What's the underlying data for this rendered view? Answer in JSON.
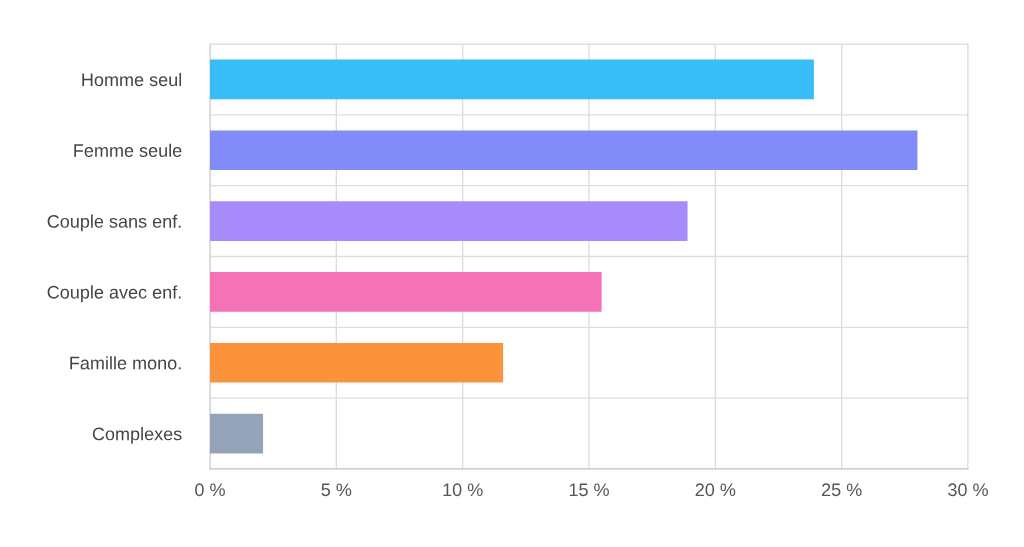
{
  "chart_data": {
    "type": "bar",
    "orientation": "horizontal",
    "categories": [
      "Homme seul",
      "Femme seule",
      "Couple sans enf.",
      "Couple avec enf.",
      "Famille mono.",
      "Complexes"
    ],
    "values": [
      23.9,
      28.0,
      18.9,
      15.5,
      11.6,
      2.1
    ],
    "colors": [
      "#38bdf8",
      "#818cf8",
      "#a78bfa",
      "#f472b6",
      "#fb923c",
      "#94a3b8"
    ],
    "xlim": [
      0,
      30
    ],
    "xticks": [
      {
        "value": 0,
        "label": "0 %"
      },
      {
        "value": 5,
        "label": "5 %"
      },
      {
        "value": 10,
        "label": "10 %"
      },
      {
        "value": 15,
        "label": "15 %"
      },
      {
        "value": 20,
        "label": "20 %"
      },
      {
        "value": 25,
        "label": "25 %"
      },
      {
        "value": 30,
        "label": "30 %"
      }
    ],
    "grid": true,
    "legend": false
  }
}
